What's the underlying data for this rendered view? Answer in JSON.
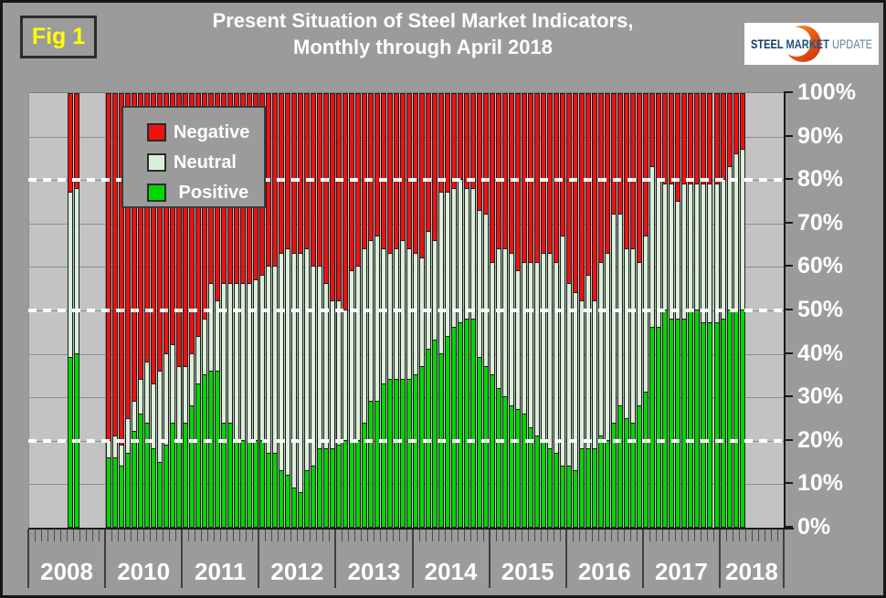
{
  "header": {
    "fig_label": "Fig 1",
    "title_line1": "Present Situation of Steel Market Indicators,",
    "title_line2": "Monthly through April 2018"
  },
  "logo": {
    "word1": "STEEL ",
    "word2": "MARKET ",
    "word3": "UPDATE",
    "word1_color": "#123a66",
    "word2_color": "#1d5180",
    "word3_color": "#60809f",
    "crescent_colors": [
      "#f6a21b",
      "#e85c15",
      "#cc2a10"
    ],
    "background": "#ffffff"
  },
  "legend": {
    "items": [
      {
        "label": "Negative",
        "color": "#ee1111"
      },
      {
        "label": "Neutral",
        "color": "#d9f0d9"
      },
      {
        "label": " Positive",
        "color": "#00d800"
      }
    ]
  },
  "colors": {
    "outer_background": "#9b9b9b",
    "plot_background": "#c3c3c3",
    "gridline": "#8d8d8d",
    "negative": "#ee1111",
    "neutral": "#d9f0d9",
    "positive": "#00d800",
    "bar_border": "#1d1d1d",
    "dotted_line": "#ffffff",
    "text": "#ffffff",
    "fig_label_color": "#ffff00"
  },
  "chart_data": {
    "type": "bar",
    "stacked": true,
    "units": "percent",
    "title": "Present Situation of Steel Market Indicators, Monthly through April 2018",
    "ylabel": "",
    "xlabel": "",
    "ylim": [
      0,
      100
    ],
    "y_ticks": [
      "100%",
      "90%",
      "80%",
      "70%",
      "60%",
      "50%",
      "40%",
      "30%",
      "20%",
      "10%",
      "0%"
    ],
    "x_year_labels": [
      "2008",
      "2010",
      "2011",
      "2012",
      "2013",
      "2014",
      "2015",
      "2016",
      "2017",
      "2018"
    ],
    "dotted_reference_lines_pct": [
      80,
      50,
      20
    ],
    "legend_entries": [
      "Negative",
      "Neutral",
      "Positive"
    ],
    "note": "stacked monthly bars; pos+neu+neg=100; axis skips 2009 (no survey data)",
    "bars": [
      {
        "m": "2008-07",
        "pos": 39,
        "neu": 38,
        "neg": 23
      },
      {
        "m": "2008-08",
        "pos": 40,
        "neu": 38,
        "neg": 22
      },
      {
        "m": "2010-01",
        "pos": 16,
        "neu": 4,
        "neg": 80
      },
      {
        "m": "2010-02",
        "pos": 16,
        "neu": 5,
        "neg": 79
      },
      {
        "m": "2010-03",
        "pos": 14,
        "neu": 5,
        "neg": 81
      },
      {
        "m": "2010-04",
        "pos": 17,
        "neu": 8,
        "neg": 75
      },
      {
        "m": "2010-05",
        "pos": 22,
        "neu": 7,
        "neg": 71
      },
      {
        "m": "2010-06",
        "pos": 26,
        "neu": 8,
        "neg": 66
      },
      {
        "m": "2010-07",
        "pos": 24,
        "neu": 14,
        "neg": 62
      },
      {
        "m": "2010-08",
        "pos": 18,
        "neu": 15,
        "neg": 67
      },
      {
        "m": "2010-09",
        "pos": 15,
        "neu": 21,
        "neg": 64
      },
      {
        "m": "2010-10",
        "pos": 19,
        "neu": 21,
        "neg": 60
      },
      {
        "m": "2010-11",
        "pos": 24,
        "neu": 18,
        "neg": 58
      },
      {
        "m": "2010-12",
        "pos": 20,
        "neu": 17,
        "neg": 63
      },
      {
        "m": "2011-01",
        "pos": 24,
        "neu": 13,
        "neg": 63
      },
      {
        "m": "2011-02",
        "pos": 28,
        "neu": 12,
        "neg": 60
      },
      {
        "m": "2011-03",
        "pos": 33,
        "neu": 11,
        "neg": 56
      },
      {
        "m": "2011-04",
        "pos": 35,
        "neu": 13,
        "neg": 52
      },
      {
        "m": "2011-05",
        "pos": 36,
        "neu": 20,
        "neg": 44
      },
      {
        "m": "2011-06",
        "pos": 36,
        "neu": 16,
        "neg": 48
      },
      {
        "m": "2011-07",
        "pos": 24,
        "neu": 32,
        "neg": 44
      },
      {
        "m": "2011-08",
        "pos": 24,
        "neu": 32,
        "neg": 44
      },
      {
        "m": "2011-09",
        "pos": 20,
        "neu": 36,
        "neg": 44
      },
      {
        "m": "2011-10",
        "pos": 20,
        "neu": 36,
        "neg": 44
      },
      {
        "m": "2011-11",
        "pos": 20,
        "neu": 36,
        "neg": 44
      },
      {
        "m": "2011-12",
        "pos": 20,
        "neu": 37,
        "neg": 43
      },
      {
        "m": "2012-01",
        "pos": 20,
        "neu": 38,
        "neg": 42
      },
      {
        "m": "2012-02",
        "pos": 17,
        "neu": 43,
        "neg": 40
      },
      {
        "m": "2012-03",
        "pos": 17,
        "neu": 43,
        "neg": 40
      },
      {
        "m": "2012-04",
        "pos": 13,
        "neu": 50,
        "neg": 37
      },
      {
        "m": "2012-05",
        "pos": 12,
        "neu": 52,
        "neg": 36
      },
      {
        "m": "2012-06",
        "pos": 9,
        "neu": 54,
        "neg": 37
      },
      {
        "m": "2012-07",
        "pos": 8,
        "neu": 55,
        "neg": 37
      },
      {
        "m": "2012-08",
        "pos": 13,
        "neu": 51,
        "neg": 36
      },
      {
        "m": "2012-09",
        "pos": 14,
        "neu": 46,
        "neg": 40
      },
      {
        "m": "2012-10",
        "pos": 18,
        "neu": 42,
        "neg": 40
      },
      {
        "m": "2012-11",
        "pos": 18,
        "neu": 38,
        "neg": 44
      },
      {
        "m": "2012-12",
        "pos": 18,
        "neu": 34,
        "neg": 48
      },
      {
        "m": "2013-01",
        "pos": 19,
        "neu": 33,
        "neg": 48
      },
      {
        "m": "2013-02",
        "pos": 20,
        "neu": 30,
        "neg": 50
      },
      {
        "m": "2013-03",
        "pos": 20,
        "neu": 39,
        "neg": 41
      },
      {
        "m": "2013-04",
        "pos": 20,
        "neu": 40,
        "neg": 40
      },
      {
        "m": "2013-05",
        "pos": 24,
        "neu": 40,
        "neg": 36
      },
      {
        "m": "2013-06",
        "pos": 29,
        "neu": 37,
        "neg": 34
      },
      {
        "m": "2013-07",
        "pos": 29,
        "neu": 38,
        "neg": 33
      },
      {
        "m": "2013-08",
        "pos": 33,
        "neu": 31,
        "neg": 36
      },
      {
        "m": "2013-09",
        "pos": 34,
        "neu": 29,
        "neg": 37
      },
      {
        "m": "2013-10",
        "pos": 34,
        "neu": 30,
        "neg": 36
      },
      {
        "m": "2013-11",
        "pos": 34,
        "neu": 32,
        "neg": 34
      },
      {
        "m": "2013-12",
        "pos": 34,
        "neu": 30,
        "neg": 36
      },
      {
        "m": "2014-01",
        "pos": 35,
        "neu": 28,
        "neg": 37
      },
      {
        "m": "2014-02",
        "pos": 37,
        "neu": 25,
        "neg": 38
      },
      {
        "m": "2014-03",
        "pos": 41,
        "neu": 27,
        "neg": 32
      },
      {
        "m": "2014-04",
        "pos": 43,
        "neu": 23,
        "neg": 34
      },
      {
        "m": "2014-05",
        "pos": 40,
        "neu": 37,
        "neg": 23
      },
      {
        "m": "2014-06",
        "pos": 44,
        "neu": 33,
        "neg": 23
      },
      {
        "m": "2014-07",
        "pos": 46,
        "neu": 32,
        "neg": 22
      },
      {
        "m": "2014-08",
        "pos": 47,
        "neu": 33,
        "neg": 20
      },
      {
        "m": "2014-09",
        "pos": 48,
        "neu": 30,
        "neg": 22
      },
      {
        "m": "2014-10",
        "pos": 48,
        "neu": 30,
        "neg": 22
      },
      {
        "m": "2014-11",
        "pos": 39,
        "neu": 34,
        "neg": 27
      },
      {
        "m": "2014-12",
        "pos": 37,
        "neu": 35,
        "neg": 28
      },
      {
        "m": "2015-01",
        "pos": 35,
        "neu": 26,
        "neg": 39
      },
      {
        "m": "2015-02",
        "pos": 32,
        "neu": 32,
        "neg": 36
      },
      {
        "m": "2015-03",
        "pos": 30,
        "neu": 34,
        "neg": 36
      },
      {
        "m": "2015-04",
        "pos": 28,
        "neu": 35,
        "neg": 37
      },
      {
        "m": "2015-05",
        "pos": 27,
        "neu": 32,
        "neg": 41
      },
      {
        "m": "2015-06",
        "pos": 26,
        "neu": 35,
        "neg": 39
      },
      {
        "m": "2015-07",
        "pos": 23,
        "neu": 38,
        "neg": 39
      },
      {
        "m": "2015-08",
        "pos": 21,
        "neu": 40,
        "neg": 39
      },
      {
        "m": "2015-09",
        "pos": 20,
        "neu": 43,
        "neg": 37
      },
      {
        "m": "2015-10",
        "pos": 18,
        "neu": 45,
        "neg": 37
      },
      {
        "m": "2015-11",
        "pos": 17,
        "neu": 44,
        "neg": 39
      },
      {
        "m": "2015-12",
        "pos": 14,
        "neu": 53,
        "neg": 33
      },
      {
        "m": "2016-01",
        "pos": 14,
        "neu": 42,
        "neg": 44
      },
      {
        "m": "2016-02",
        "pos": 13,
        "neu": 41,
        "neg": 46
      },
      {
        "m": "2016-03",
        "pos": 18,
        "neu": 34,
        "neg": 48
      },
      {
        "m": "2016-04",
        "pos": 18,
        "neu": 40,
        "neg": 42
      },
      {
        "m": "2016-05",
        "pos": 18,
        "neu": 34,
        "neg": 48
      },
      {
        "m": "2016-06",
        "pos": 21,
        "neu": 40,
        "neg": 39
      },
      {
        "m": "2016-07",
        "pos": 20,
        "neu": 43,
        "neg": 37
      },
      {
        "m": "2016-08",
        "pos": 24,
        "neu": 48,
        "neg": 28
      },
      {
        "m": "2016-09",
        "pos": 28,
        "neu": 44,
        "neg": 28
      },
      {
        "m": "2016-10",
        "pos": 25,
        "neu": 39,
        "neg": 36
      },
      {
        "m": "2016-11",
        "pos": 24,
        "neu": 40,
        "neg": 36
      },
      {
        "m": "2016-12",
        "pos": 28,
        "neu": 33,
        "neg": 39
      },
      {
        "m": "2017-01",
        "pos": 31,
        "neu": 36,
        "neg": 33
      },
      {
        "m": "2017-02",
        "pos": 46,
        "neu": 37,
        "neg": 17
      },
      {
        "m": "2017-03",
        "pos": 46,
        "neu": 34,
        "neg": 20
      },
      {
        "m": "2017-04",
        "pos": 50,
        "neu": 29,
        "neg": 21
      },
      {
        "m": "2017-05",
        "pos": 48,
        "neu": 31,
        "neg": 21
      },
      {
        "m": "2017-06",
        "pos": 48,
        "neu": 27,
        "neg": 25
      },
      {
        "m": "2017-07",
        "pos": 48,
        "neu": 31,
        "neg": 21
      },
      {
        "m": "2017-08",
        "pos": 50,
        "neu": 29,
        "neg": 21
      },
      {
        "m": "2017-09",
        "pos": 50,
        "neu": 29,
        "neg": 21
      },
      {
        "m": "2017-10",
        "pos": 47,
        "neu": 32,
        "neg": 21
      },
      {
        "m": "2017-11",
        "pos": 47,
        "neu": 32,
        "neg": 21
      },
      {
        "m": "2017-12",
        "pos": 47,
        "neu": 32,
        "neg": 21
      },
      {
        "m": "2018-01",
        "pos": 48,
        "neu": 32,
        "neg": 20
      },
      {
        "m": "2018-02",
        "pos": 50,
        "neu": 33,
        "neg": 17
      },
      {
        "m": "2018-03",
        "pos": 50,
        "neu": 36,
        "neg": 14
      },
      {
        "m": "2018-04",
        "pos": 50,
        "neu": 37,
        "neg": 13
      }
    ]
  }
}
